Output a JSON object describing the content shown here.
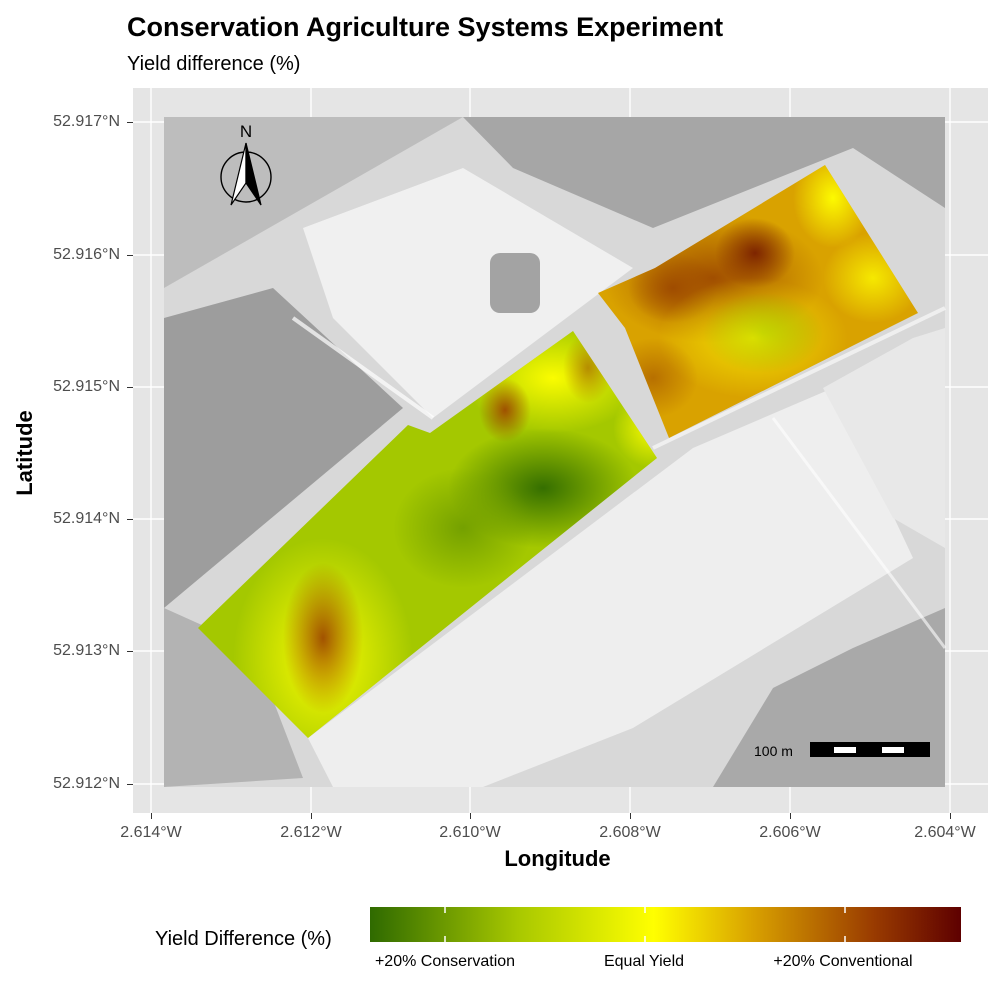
{
  "title": "Conservation Agriculture Systems Experiment",
  "subtitle": "Yield difference (%)",
  "axes": {
    "x_title": "Longitude",
    "y_title": "Latitude",
    "x_ticks": [
      "2.614°W",
      "2.612°W",
      "2.610°W",
      "2.608°W",
      "2.606°W",
      "2.604°W"
    ],
    "y_ticks": [
      "52.917°N",
      "52.916°N",
      "52.915°N",
      "52.914°N",
      "52.913°N",
      "52.912°N"
    ],
    "x_range": [
      -2.614,
      -2.604
    ],
    "y_range": [
      52.912,
      52.917
    ]
  },
  "north_arrow": {
    "label": "N"
  },
  "scale_bar": {
    "label": "100 m"
  },
  "legend": {
    "title": "Yield Difference (%)",
    "labels": [
      "+20% Conservation",
      "Equal Yield",
      "+20% Conventional"
    ],
    "colors": [
      "#2f6a00",
      "#b6d100",
      "#ffff00",
      "#d49a00",
      "#a24600",
      "#5e0000"
    ]
  },
  "colors": {
    "panel_bg": "#e5e5e5",
    "grid": "#ffffff",
    "conservation": "#2f6a00",
    "equal": "#ffff00",
    "conventional": "#6a0000"
  }
}
